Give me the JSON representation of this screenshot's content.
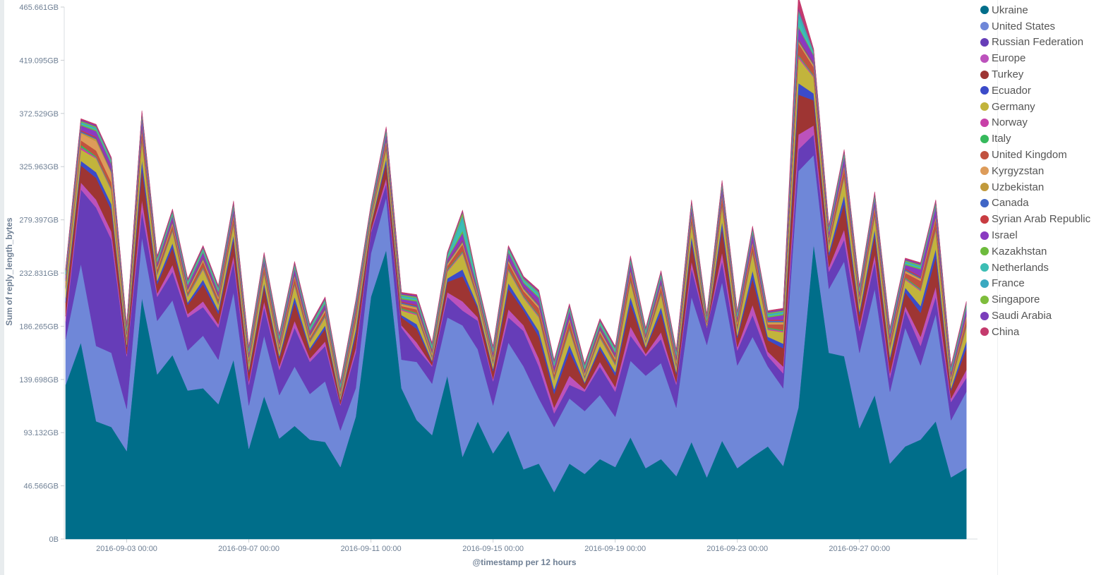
{
  "chart_data": {
    "type": "area",
    "stacked": true,
    "xlabel": "@timestamp per 12 hours",
    "ylabel": "Sum of reply_length_bytes",
    "x_start": "2016-09-01 00:00",
    "x_interval": "12 hours",
    "x_tick_labels": [
      "2016-09-03 00:00",
      "2016-09-07 00:00",
      "2016-09-11 00:00",
      "2016-09-15 00:00",
      "2016-09-19 00:00",
      "2016-09-23 00:00",
      "2016-09-27 00:00"
    ],
    "y_tick_labels": [
      "0B",
      "46.566GB",
      "93.132GB",
      "139.698GB",
      "186.265GB",
      "232.831GB",
      "279.397GB",
      "325.963GB",
      "372.529GB",
      "419.095GB",
      "465.661GB"
    ],
    "ylim": [
      0,
      465.661
    ],
    "y_unit": "GB",
    "legend_position": "right",
    "series": [
      {
        "name": "Ukraine",
        "color": "#006e8a",
        "values": [
          135,
          172,
          103,
          98,
          77,
          211,
          144,
          161,
          130,
          132,
          118,
          157,
          79,
          125,
          88,
          99,
          87,
          85,
          63,
          107,
          212,
          253,
          132,
          104,
          91,
          143,
          72,
          103,
          75,
          95,
          61,
          66,
          41,
          66,
          57,
          70,
          63,
          89,
          62,
          70,
          55,
          85,
          54,
          86,
          62,
          72,
          81,
          64,
          115,
          258,
          163,
          160,
          97,
          126,
          66,
          81,
          87,
          103,
          54,
          62
        ]
      },
      {
        "name": "United States",
        "color": "#6f87d8",
        "values": [
          40,
          69,
          66,
          65,
          37,
          53,
          47,
          48,
          35,
          46,
          39,
          59,
          38,
          53,
          38,
          52,
          40,
          53,
          32,
          25,
          38,
          46,
          25,
          51,
          45,
          51,
          115,
          63,
          42,
          77,
          90,
          57,
          57,
          57,
          55,
          56,
          44,
          67,
          81,
          84,
          60,
          127,
          116,
          139,
          90,
          105,
          70,
          68,
          207,
          78,
          56,
          83,
          66,
          93,
          63,
          104,
          65,
          94,
          50,
          67
        ]
      },
      {
        "name": "Russian Federation",
        "color": "#663db8",
        "values": [
          15,
          65,
          121,
          99,
          46,
          23,
          21,
          25,
          29,
          25,
          28,
          27,
          18,
          25,
          22,
          34,
          28,
          31,
          22,
          31,
          18,
          12,
          28,
          12,
          15,
          18,
          13,
          25,
          21,
          22,
          31,
          28,
          12,
          12,
          17,
          25,
          22,
          22,
          17,
          21,
          20,
          25,
          15,
          18,
          13,
          19,
          9,
          13,
          19,
          18,
          15,
          19,
          19,
          24,
          12,
          15,
          17,
          15,
          16,
          12
        ]
      },
      {
        "name": "Europe",
        "color": "#bc52bc",
        "values": [
          5,
          6,
          7,
          7,
          2,
          10,
          3,
          6,
          3,
          5,
          3,
          5,
          3,
          5,
          3,
          6,
          3,
          4,
          1,
          4,
          2,
          5,
          2,
          5,
          1,
          4,
          8,
          3,
          2,
          7,
          5,
          7,
          5,
          8,
          2,
          4,
          4,
          8,
          2,
          6,
          2,
          6,
          0,
          8,
          3,
          9,
          4,
          6,
          13,
          8,
          4,
          9,
          4,
          6,
          4,
          4,
          8,
          9,
          3,
          7
        ]
      },
      {
        "name": "Turkey",
        "color": "#9e3533",
        "values": [
          12,
          15,
          19,
          19,
          6,
          27,
          8,
          15,
          8,
          15,
          9,
          14,
          8,
          13,
          7,
          16,
          7,
          11,
          3,
          12,
          5,
          13,
          7,
          12,
          3,
          9,
          22,
          8,
          7,
          18,
          13,
          19,
          12,
          21,
          5,
          11,
          10,
          20,
          5,
          17,
          7,
          17,
          0,
          21,
          8,
          23,
          10,
          16,
          35,
          22,
          10,
          23,
          10,
          17,
          11,
          12,
          21,
          26,
          7,
          19
        ]
      },
      {
        "name": "Ecuador",
        "color": "#3b4bc9",
        "values": [
          4,
          4,
          5,
          5,
          2,
          8,
          3,
          4,
          2,
          4,
          3,
          4,
          2,
          3,
          2,
          5,
          2,
          3,
          1,
          4,
          1,
          4,
          2,
          4,
          1,
          3,
          6,
          2,
          2,
          5,
          3,
          5,
          4,
          6,
          1,
          3,
          3,
          6,
          1,
          5,
          2,
          5,
          0,
          6,
          2,
          7,
          3,
          4,
          10,
          6,
          3,
          7,
          3,
          5,
          3,
          4,
          6,
          7,
          2,
          6
        ]
      },
      {
        "name": "Germany",
        "color": "#c2b43c",
        "values": [
          8,
          10,
          12,
          12,
          3,
          17,
          5,
          10,
          5,
          9,
          5,
          9,
          5,
          8,
          4,
          10,
          5,
          7,
          2,
          7,
          3,
          8,
          4,
          8,
          2,
          6,
          14,
          5,
          4,
          11,
          8,
          12,
          8,
          13,
          3,
          7,
          6,
          13,
          3,
          11,
          4,
          11,
          0,
          13,
          5,
          15,
          6,
          10,
          22,
          14,
          6,
          15,
          6,
          11,
          7,
          7,
          13,
          16,
          4,
          12
        ]
      },
      {
        "name": "Norway",
        "color": "#c840a8",
        "values": [
          1,
          2,
          1,
          1,
          1,
          1,
          1,
          1,
          1,
          1,
          1,
          1,
          1,
          1,
          1,
          1,
          1,
          1,
          1,
          1,
          1,
          1,
          1,
          1,
          1,
          1,
          1,
          1,
          1,
          1,
          1,
          1,
          1,
          1,
          1,
          1,
          1,
          1,
          1,
          1,
          1,
          1,
          1,
          1,
          1,
          1,
          1,
          1,
          2,
          1,
          1,
          1,
          1,
          1,
          1,
          1,
          1,
          1,
          1,
          1
        ]
      },
      {
        "name": "Italy",
        "color": "#36b95c",
        "values": [
          1,
          2,
          1,
          1,
          1,
          1,
          1,
          1,
          1,
          1,
          1,
          1,
          1,
          1,
          1,
          1,
          1,
          1,
          1,
          1,
          1,
          1,
          1,
          1,
          1,
          1,
          1,
          1,
          1,
          1,
          1,
          1,
          1,
          1,
          1,
          1,
          1,
          1,
          1,
          1,
          1,
          1,
          1,
          1,
          1,
          1,
          1,
          1,
          1,
          1,
          1,
          1,
          1,
          1,
          1,
          1,
          1,
          1,
          1,
          1
        ]
      },
      {
        "name": "United Kingdom",
        "color": "#c1523f",
        "values": [
          3,
          4,
          5,
          5,
          2,
          7,
          3,
          4,
          2,
          5,
          3,
          5,
          2,
          4,
          2,
          5,
          2,
          3,
          1,
          4,
          1,
          4,
          2,
          3,
          1,
          3,
          6,
          2,
          2,
          5,
          4,
          6,
          3,
          6,
          1,
          3,
          3,
          6,
          1,
          5,
          2,
          5,
          0,
          6,
          3,
          6,
          3,
          5,
          10,
          7,
          3,
          7,
          3,
          5,
          4,
          4,
          7,
          8,
          2,
          6
        ]
      },
      {
        "name": "Kyrgyzstan",
        "color": "#dd9c5a",
        "values": [
          1,
          6,
          8,
          8,
          1,
          1,
          1,
          1,
          1,
          1,
          1,
          1,
          1,
          1,
          1,
          1,
          1,
          1,
          1,
          1,
          1,
          1,
          1,
          1,
          1,
          1,
          1,
          1,
          1,
          1,
          1,
          1,
          1,
          1,
          1,
          1,
          1,
          1,
          1,
          1,
          1,
          1,
          1,
          1,
          1,
          1,
          1,
          1,
          1,
          1,
          1,
          1,
          1,
          1,
          1,
          1,
          1,
          1,
          1,
          1
        ]
      },
      {
        "name": "Uzbekistan",
        "color": "#c19a3c",
        "values": [
          1,
          1,
          2,
          1,
          1,
          1,
          1,
          1,
          1,
          1,
          1,
          1,
          1,
          1,
          1,
          1,
          1,
          1,
          1,
          1,
          1,
          1,
          1,
          1,
          1,
          1,
          1,
          1,
          1,
          1,
          1,
          1,
          1,
          1,
          1,
          1,
          1,
          1,
          1,
          1,
          1,
          1,
          1,
          1,
          1,
          1,
          1,
          1,
          1,
          1,
          1,
          1,
          1,
          1,
          1,
          1,
          1,
          1,
          1,
          1
        ]
      },
      {
        "name": "Canada",
        "color": "#3f66c6",
        "values": [
          1,
          1,
          1,
          1,
          1,
          1,
          1,
          1,
          1,
          1,
          1,
          1,
          1,
          1,
          1,
          1,
          1,
          1,
          1,
          1,
          1,
          1,
          1,
          1,
          1,
          1,
          1,
          1,
          1,
          1,
          1,
          1,
          1,
          1,
          1,
          1,
          1,
          1,
          1,
          1,
          1,
          1,
          1,
          1,
          1,
          1,
          1,
          1,
          1,
          1,
          1,
          1,
          1,
          1,
          1,
          1,
          1,
          1,
          1,
          1
        ]
      },
      {
        "name": "Syrian Arab Republic",
        "color": "#c83c41",
        "values": [
          1,
          1,
          1,
          1,
          1,
          1,
          1,
          1,
          1,
          1,
          1,
          1,
          1,
          1,
          1,
          1,
          1,
          1,
          1,
          1,
          1,
          1,
          1,
          1,
          1,
          1,
          1,
          1,
          1,
          1,
          1,
          1,
          1,
          1,
          1,
          1,
          1,
          1,
          1,
          1,
          1,
          1,
          1,
          1,
          1,
          1,
          1,
          1,
          1,
          1,
          1,
          1,
          1,
          1,
          1,
          1,
          1,
          1,
          1,
          1
        ]
      },
      {
        "name": "Israel",
        "color": "#8a3ac1",
        "values": [
          3,
          4,
          5,
          5,
          1,
          7,
          2,
          4,
          2,
          4,
          2,
          4,
          2,
          3,
          2,
          4,
          2,
          3,
          1,
          3,
          1,
          4,
          2,
          3,
          1,
          2,
          6,
          2,
          2,
          5,
          3,
          5,
          3,
          5,
          1,
          2,
          2,
          5,
          1,
          4,
          2,
          4,
          0,
          5,
          2,
          6,
          2,
          4,
          10,
          6,
          3,
          6,
          2,
          5,
          3,
          3,
          6,
          7,
          2,
          5
        ]
      },
      {
        "name": "Kazakhstan",
        "color": "#6dbb3c",
        "values": [
          1,
          1,
          1,
          1,
          1,
          1,
          1,
          1,
          1,
          1,
          1,
          1,
          1,
          1,
          1,
          1,
          1,
          1,
          1,
          1,
          1,
          1,
          1,
          1,
          1,
          1,
          2,
          1,
          1,
          1,
          1,
          1,
          1,
          1,
          1,
          1,
          1,
          1,
          1,
          1,
          1,
          1,
          1,
          1,
          1,
          1,
          1,
          1,
          1,
          1,
          1,
          1,
          1,
          1,
          1,
          1,
          1,
          1,
          1,
          1
        ]
      },
      {
        "name": "Netherlands",
        "color": "#3cbeb4",
        "values": [
          1,
          1,
          1,
          1,
          1,
          1,
          1,
          1,
          1,
          1,
          1,
          1,
          1,
          1,
          1,
          1,
          1,
          1,
          1,
          1,
          1,
          1,
          1,
          1,
          1,
          1,
          10,
          1,
          1,
          1,
          1,
          2,
          1,
          1,
          1,
          1,
          1,
          1,
          1,
          1,
          1,
          1,
          1,
          1,
          1,
          1,
          1,
          1,
          8,
          1,
          1,
          1,
          1,
          1,
          1,
          1,
          1,
          1,
          1,
          1
        ]
      },
      {
        "name": "France",
        "color": "#3aa9c0",
        "values": [
          1,
          1,
          1,
          1,
          1,
          1,
          1,
          1,
          1,
          1,
          1,
          1,
          1,
          1,
          1,
          1,
          1,
          1,
          1,
          1,
          1,
          1,
          1,
          1,
          1,
          1,
          3,
          1,
          1,
          1,
          1,
          1,
          1,
          1,
          1,
          1,
          1,
          1,
          1,
          1,
          1,
          1,
          1,
          1,
          1,
          1,
          1,
          1,
          5,
          1,
          1,
          1,
          1,
          1,
          1,
          1,
          1,
          1,
          1,
          1
        ]
      },
      {
        "name": "Singapore",
        "color": "#7ebd3c",
        "values": [
          1,
          1,
          1,
          1,
          1,
          1,
          1,
          1,
          1,
          1,
          1,
          1,
          1,
          1,
          1,
          1,
          1,
          1,
          1,
          1,
          1,
          1,
          1,
          1,
          1,
          1,
          3,
          1,
          1,
          1,
          1,
          1,
          1,
          1,
          1,
          1,
          1,
          1,
          1,
          1,
          1,
          1,
          1,
          1,
          1,
          1,
          1,
          1,
          1,
          1,
          1,
          1,
          1,
          1,
          1,
          1,
          1,
          1,
          1,
          1
        ]
      },
      {
        "name": "Saudi Arabia",
        "color": "#7b3ebb",
        "values": [
          1,
          1,
          1,
          1,
          1,
          1,
          1,
          1,
          1,
          1,
          1,
          1,
          1,
          1,
          1,
          1,
          1,
          1,
          1,
          1,
          1,
          1,
          1,
          1,
          1,
          1,
          1,
          1,
          1,
          1,
          1,
          1,
          1,
          1,
          1,
          1,
          1,
          1,
          1,
          1,
          1,
          1,
          1,
          1,
          1,
          1,
          1,
          1,
          2,
          1,
          1,
          1,
          1,
          1,
          1,
          1,
          1,
          1,
          1,
          1
        ]
      },
      {
        "name": "China",
        "color": "#c43a6d",
        "values": [
          1,
          1,
          1,
          1,
          1,
          1,
          1,
          1,
          1,
          1,
          1,
          1,
          1,
          1,
          1,
          1,
          1,
          1,
          1,
          1,
          1,
          1,
          1,
          1,
          1,
          1,
          1,
          1,
          1,
          1,
          1,
          1,
          1,
          1,
          1,
          1,
          1,
          1,
          1,
          1,
          1,
          1,
          1,
          1,
          1,
          1,
          1,
          1,
          10,
          1,
          1,
          1,
          1,
          1,
          1,
          1,
          1,
          1,
          1,
          1
        ]
      }
    ]
  }
}
